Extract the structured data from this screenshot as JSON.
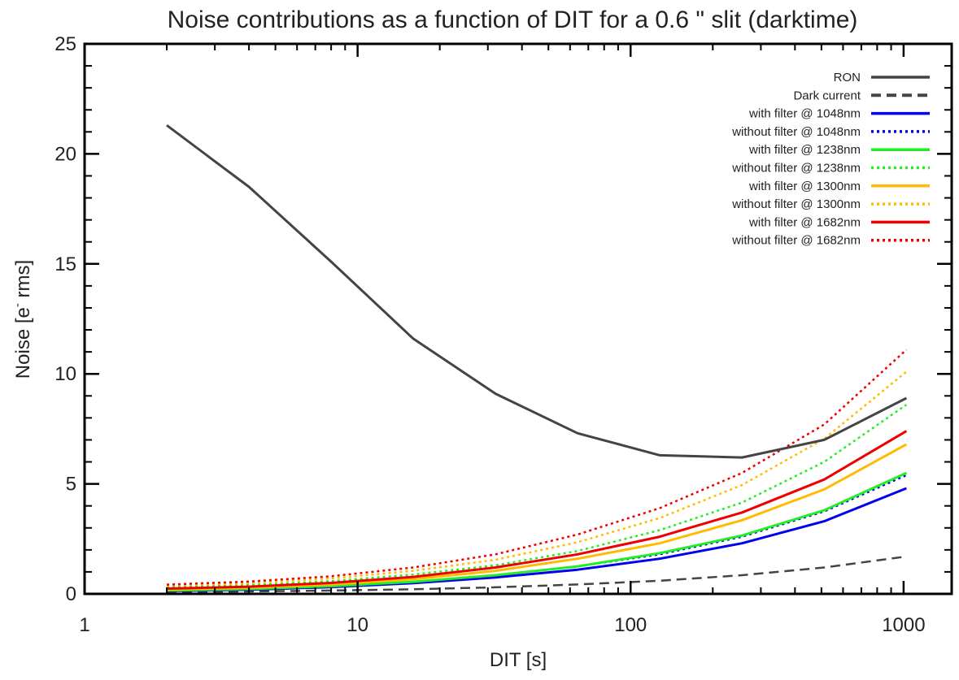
{
  "chart_data": {
    "type": "line",
    "title": "Noise contributions as a function of DIT for a 0.6 \" slit (darktime)",
    "xlabel": "DIT [s]",
    "ylabel_main": "Noise [e",
    "ylabel_sup": "-",
    "ylabel_tail": " rms]",
    "xscale": "log",
    "xlim": [
      1,
      1500
    ],
    "ylim": [
      0,
      25
    ],
    "xticks": [
      1,
      10,
      100,
      1000
    ],
    "xtick_labels": [
      "1",
      "10",
      "100",
      "1000"
    ],
    "yticks": [
      0,
      5,
      10,
      15,
      20,
      25
    ],
    "ytick_labels": [
      "0",
      "5",
      "10",
      "15",
      "20",
      "25"
    ],
    "legend_position": "top-right",
    "x": [
      2,
      4,
      8,
      16,
      32,
      64,
      128,
      256,
      512,
      1024
    ],
    "series": [
      {
        "name": "RON",
        "color": "#444444",
        "style": "solid",
        "values": [
          21.3,
          18.5,
          15.1,
          11.6,
          9.1,
          7.3,
          6.3,
          6.2,
          7.0,
          8.9
        ]
      },
      {
        "name": "Dark current",
        "color": "#444444",
        "style": "dashed",
        "values": [
          0.07,
          0.11,
          0.15,
          0.21,
          0.3,
          0.43,
          0.6,
          0.85,
          1.2,
          1.7
        ]
      },
      {
        "name": "with filter @ 1048nm",
        "color": "#0000ee",
        "style": "solid",
        "values": [
          0.13,
          0.19,
          0.31,
          0.49,
          0.75,
          1.1,
          1.6,
          2.3,
          3.3,
          4.8
        ]
      },
      {
        "name": "without filter @ 1048nm",
        "color": "#0000ee",
        "style": "dotted",
        "values": [
          0.15,
          0.22,
          0.35,
          0.55,
          0.85,
          1.25,
          1.8,
          2.6,
          3.75,
          5.4
        ]
      },
      {
        "name": "with filter @ 1238nm",
        "color": "#22ee22",
        "style": "solid",
        "values": [
          0.15,
          0.22,
          0.35,
          0.55,
          0.85,
          1.25,
          1.85,
          2.65,
          3.8,
          5.5
        ]
      },
      {
        "name": "without filter @ 1238nm",
        "color": "#22ee22",
        "style": "dotted",
        "values": [
          0.3,
          0.4,
          0.58,
          0.88,
          1.3,
          1.95,
          2.9,
          4.15,
          6.0,
          8.6
        ]
      },
      {
        "name": "with filter @ 1300nm",
        "color": "#ffbb00",
        "style": "solid",
        "values": [
          0.2,
          0.28,
          0.43,
          0.67,
          1.05,
          1.6,
          2.3,
          3.35,
          4.75,
          6.8
        ]
      },
      {
        "name": "without filter @ 1300nm",
        "color": "#ffbb00",
        "style": "dotted",
        "values": [
          0.38,
          0.5,
          0.7,
          1.05,
          1.55,
          2.35,
          3.45,
          4.95,
          7.05,
          10.1
        ]
      },
      {
        "name": "with filter @ 1682nm",
        "color": "#ee0000",
        "style": "solid",
        "values": [
          0.24,
          0.33,
          0.5,
          0.77,
          1.2,
          1.8,
          2.6,
          3.7,
          5.2,
          7.4
        ]
      },
      {
        "name": "without filter @ 1682nm",
        "color": "#ee0000",
        "style": "dotted",
        "values": [
          0.42,
          0.56,
          0.8,
          1.2,
          1.8,
          2.7,
          3.9,
          5.5,
          7.7,
          11.1
        ]
      }
    ]
  }
}
